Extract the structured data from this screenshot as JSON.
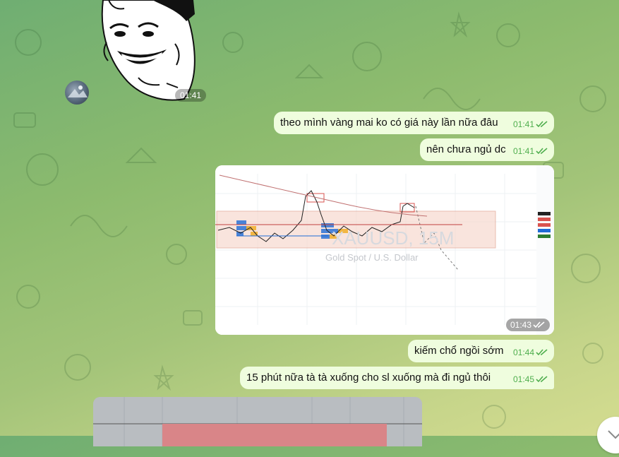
{
  "sticker": {
    "time": "01:41"
  },
  "messages": [
    {
      "text": "theo mình vàng mai ko có giá này lần nữa đâu",
      "time": "01:41"
    },
    {
      "text": "nên chưa ngủ dc",
      "time": "01:41"
    },
    {
      "text": "kiếm chổ ngồi sớm",
      "time": "01:44"
    },
    {
      "text": "15 phút nữa  tà tà xuống cho sl xuống mà đi ngủ thôi",
      "time": "01:45"
    }
  ],
  "chart_image": {
    "watermark_symbol": "XAUUSD, 15M",
    "watermark_name": "Gold Spot / U.S. Dollar",
    "time": "01:43"
  },
  "colors": {
    "bubble_out": "#effdde",
    "check": "#4fae4e"
  }
}
